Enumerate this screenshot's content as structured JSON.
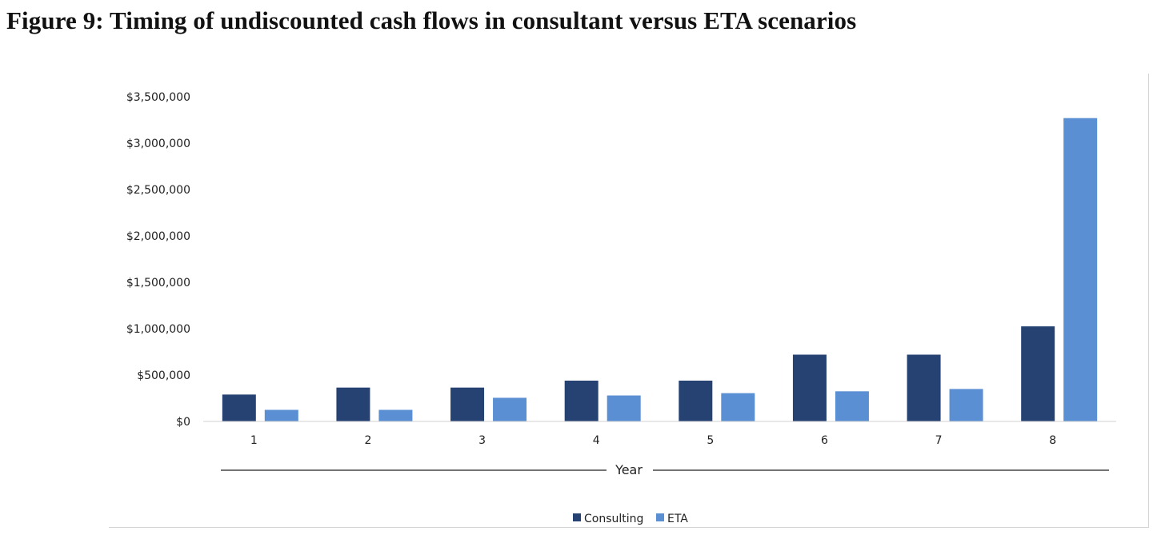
{
  "page": {
    "title": "Figure 9: Timing of undiscounted cash flows in consultant versus ETA scenarios"
  },
  "chart_data": {
    "type": "bar",
    "title": "Figure 9: Timing of undiscounted cash flows in consultant versus ETA scenarios",
    "xlabel": "Year",
    "ylabel": "",
    "categories": [
      "1",
      "2",
      "3",
      "4",
      "5",
      "6",
      "7",
      "8"
    ],
    "ylim": [
      0,
      3500000
    ],
    "yticks": [
      0,
      500000,
      1000000,
      1500000,
      2000000,
      2500000,
      3000000,
      3500000
    ],
    "ytick_labels": [
      "$0",
      "$500,000",
      "$1,000,000",
      "$1,500,000",
      "$2,000,000",
      "$2,500,000",
      "$3,000,000",
      "$3,500,000"
    ],
    "grid": false,
    "legend_position": "bottom-center",
    "series": [
      {
        "name": "Consulting",
        "color": "#254272",
        "values": [
          290000,
          365000,
          365000,
          440000,
          440000,
          720000,
          720000,
          1025000
        ]
      },
      {
        "name": "ETA",
        "color": "#5b8fd4",
        "values": [
          125000,
          125000,
          255000,
          280000,
          305000,
          325000,
          350000,
          3270000
        ]
      }
    ]
  }
}
